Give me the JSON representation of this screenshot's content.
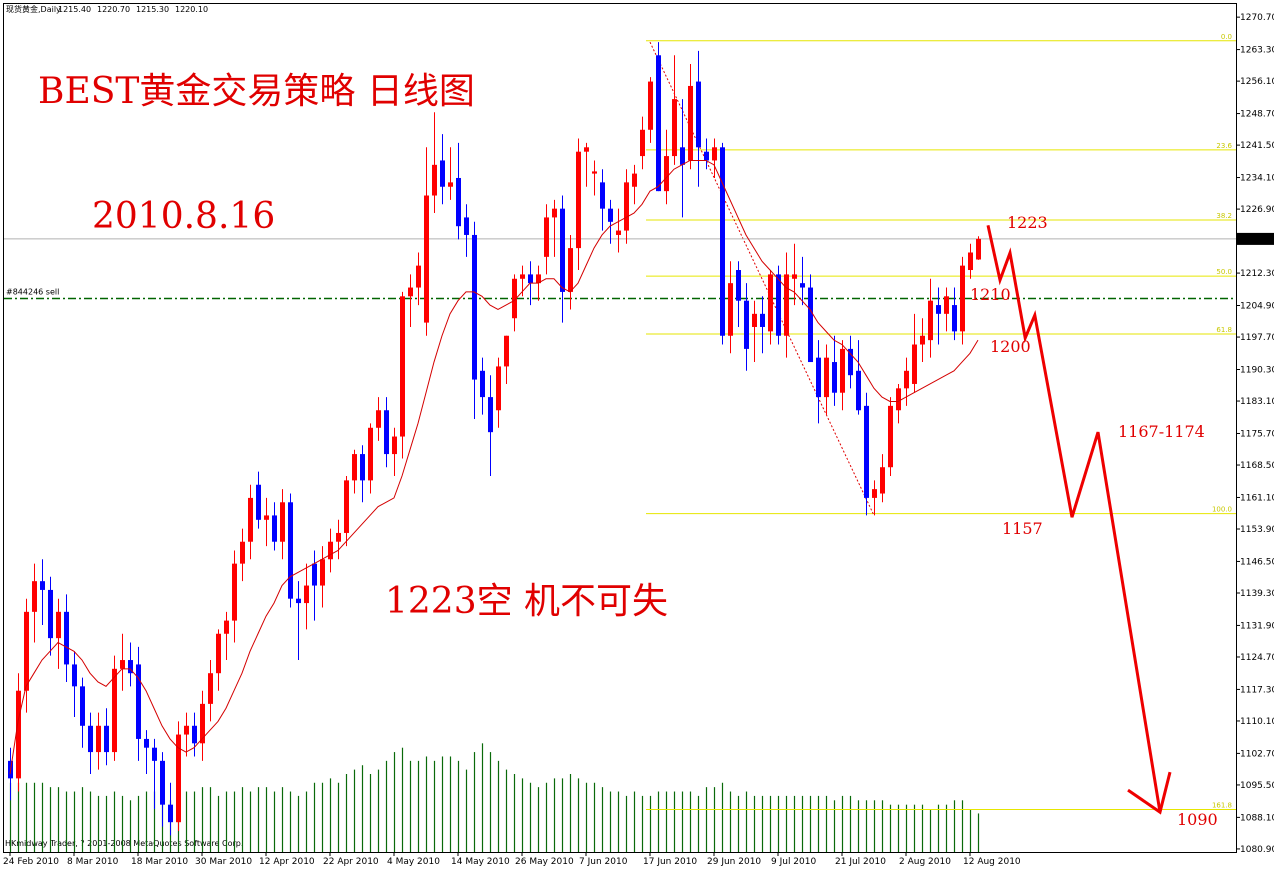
{
  "header": {
    "symbol": "现货黄金,Daily",
    "ohlc": [
      "1215.40",
      "1220.70",
      "1215.30",
      "1220.10"
    ]
  },
  "copyright": "HKmidway Trader, ? 2001-2008 MetaQuotes Software Corp.",
  "chart_data": {
    "type": "candlestick",
    "categories": [
      "24 Feb 2010",
      null,
      null,
      null,
      null,
      null,
      null,
      null,
      "8 Mar 2010",
      null,
      null,
      null,
      null,
      null,
      null,
      null,
      "18 Mar 2010",
      null,
      null,
      null,
      null,
      null,
      null,
      null,
      "30 Mar 2010",
      null,
      null,
      null,
      null,
      null,
      null,
      null,
      "12 Apr 2010",
      null,
      null,
      null,
      null,
      null,
      null,
      null,
      "22 Apr 2010",
      null,
      null,
      null,
      null,
      null,
      null,
      null,
      "4 May 2010",
      null,
      null,
      null,
      null,
      null,
      null,
      null,
      "14 May 2010",
      null,
      null,
      null,
      null,
      null,
      null,
      null,
      "26 May 2010",
      null,
      null,
      null,
      null,
      null,
      null,
      null,
      "7 Jun 2010",
      null,
      null,
      null,
      null,
      null,
      null,
      null,
      "17 Jun 2010",
      null,
      null,
      null,
      null,
      null,
      null,
      null,
      "29 Jun 2010",
      null,
      null,
      null,
      null,
      null,
      null,
      null,
      "9 Jul 2010",
      null,
      null,
      null,
      null,
      null,
      null,
      null,
      "21 Jul 2010",
      null,
      null,
      null,
      null,
      null,
      null,
      null,
      "2 Aug 2010",
      null,
      null,
      null,
      null,
      null,
      null,
      null,
      "12 Aug 2010",
      null
    ],
    "open": [
      1101,
      1097,
      1117,
      1135,
      1142,
      1140,
      1129,
      1135,
      1123,
      1118,
      1109,
      1103,
      1109,
      1103,
      1122,
      1124,
      1123,
      1106,
      1104,
      1101,
      1091,
      1087,
      1107,
      1109,
      1105,
      1114,
      1121,
      1130,
      1133,
      1146,
      1151,
      1164,
      1156,
      1157,
      1151,
      1160,
      1138,
      1137,
      1146,
      1141,
      1147,
      1151,
      1153,
      1165,
      1171,
      1165,
      1177,
      1181,
      1171,
      1175,
      1207,
      1209,
      1201,
      1230,
      1238,
      1232,
      1234,
      1225,
      1221,
      1190,
      1184,
      1181,
      1191,
      1202,
      1211,
      1212,
      1210,
      1216,
      1225,
      1227,
      1208,
      1218,
      1240,
      1235,
      1233,
      1227,
      1221,
      1222,
      1232,
      1239,
      1245,
      1262,
      1231,
      1239,
      1241,
      1238,
      1256,
      1240,
      1238,
      1241,
      1198,
      1213,
      1206,
      1200,
      1203,
      1199,
      1212,
      1198,
      1211,
      1210,
      1209,
      1193,
      1184,
      1192,
      1185,
      1195,
      1190,
      1182,
      1161,
      1162,
      1168,
      1181,
      1186,
      1187,
      1196,
      1197,
      1205,
      1203,
      1205,
      1199,
      1213,
      1215.4
    ],
    "high": [
      1104,
      1121,
      1138,
      1146,
      1147,
      1143,
      1138,
      1139,
      1126,
      1120,
      1112,
      1112,
      1113,
      1125,
      1130,
      1128,
      1127,
      1108,
      1106,
      1103,
      1096,
      1110,
      1112,
      1112,
      1117,
      1124,
      1131,
      1135,
      1149,
      1154,
      1164,
      1167,
      1161,
      1160,
      1163,
      1162,
      1142,
      1146,
      1149,
      1150,
      1154,
      1156,
      1166,
      1172,
      1173,
      1178,
      1184,
      1184,
      1177,
      1208,
      1212,
      1217,
      1241,
      1249,
      1244,
      1241,
      1242,
      1228,
      1224,
      1193,
      1189,
      1193,
      1198,
      1212,
      1214,
      1215,
      1214,
      1228,
      1229,
      1230,
      1221,
      1243,
      1242,
      1238,
      1236,
      1229,
      1227,
      1236,
      1237,
      1248,
      1257,
      1265,
      1245,
      1262,
      1252,
      1260,
      1263,
      1243,
      1243,
      1242,
      1215,
      1215,
      1210,
      1206,
      1207,
      1213,
      1214,
      1217,
      1219,
      1216,
      1212,
      1197,
      1196,
      1198,
      1197,
      1198,
      1197,
      1185,
      1165,
      1171,
      1184,
      1187,
      1193,
      1203,
      1202,
      1211,
      1209,
      1209,
      1209,
      1216,
      1219,
      1220.7
    ],
    "low": [
      1092,
      1094,
      1112,
      1128,
      1132,
      1125,
      1122,
      1119,
      1111,
      1104,
      1098,
      1099,
      1100,
      1101,
      1117,
      1118,
      1101,
      1098,
      1090,
      1086,
      1084,
      1085,
      1102,
      1102,
      1101,
      1110,
      1117,
      1124,
      1128,
      1142,
      1147,
      1154,
      1150,
      1149,
      1147,
      1136,
      1124,
      1131,
      1133,
      1136,
      1144,
      1147,
      1150,
      1162,
      1160,
      1162,
      1174,
      1168,
      1166,
      1170,
      1200,
      1205,
      1198,
      1226,
      1228,
      1229,
      1220,
      1216,
      1179,
      1180,
      1166,
      1177,
      1187,
      1199,
      1207,
      1205,
      1206,
      1212,
      1216,
      1201,
      1204,
      1213,
      1232,
      1230,
      1222,
      1219,
      1217,
      1219,
      1228,
      1236,
      1242,
      1231,
      1228,
      1237,
      1225,
      1236,
      1232,
      1236,
      1234,
      1196,
      1194,
      1200,
      1190,
      1192,
      1194,
      1196,
      1196,
      1193,
      1205,
      1205,
      1192,
      1178,
      1180,
      1182,
      1181,
      1186,
      1180,
      1157,
      1157,
      1160,
      1166,
      1178,
      1182,
      1185,
      1192,
      1193,
      1196,
      1199,
      1197,
      1196,
      1211,
      1215.3
    ],
    "close": [
      1097,
      1117,
      1135,
      1142,
      1140,
      1129,
      1135,
      1123,
      1118,
      1109,
      1103,
      1109,
      1103,
      1122,
      1124,
      1121,
      1106,
      1104,
      1101,
      1091,
      1087,
      1107,
      1109,
      1105,
      1114,
      1121,
      1130,
      1133,
      1146,
      1151,
      1161,
      1156,
      1157,
      1151,
      1160,
      1138,
      1137,
      1141,
      1141,
      1147,
      1151,
      1153,
      1165,
      1171,
      1165,
      1177,
      1181,
      1171,
      1175,
      1207,
      1209,
      1214,
      1230,
      1237,
      1232,
      1233,
      1223,
      1221,
      1188,
      1184,
      1176,
      1191,
      1198,
      1211,
      1212,
      1210,
      1212,
      1225,
      1227,
      1208,
      1218,
      1240,
      1241,
      1235.5,
      1227,
      1224,
      1222,
      1233,
      1235,
      1245,
      1256,
      1231,
      1239,
      1252,
      1237,
      1255,
      1241,
      1238,
      1241,
      1198,
      1210,
      1206,
      1195,
      1203,
      1200,
      1212,
      1198,
      1212,
      1212,
      1209,
      1192,
      1184,
      1193,
      1185,
      1195,
      1189,
      1181,
      1161,
      1163,
      1168,
      1182,
      1186,
      1190,
      1196,
      1198,
      1206,
      1203,
      1207,
      1199,
      1214,
      1217,
      1220.1
    ],
    "colors": {
      "up": "#ff0000",
      "down": "#0000ff"
    },
    "moving_average": {
      "color": "#d40000",
      "values": [
        1098,
        1110,
        1118,
        1121,
        1124,
        1126,
        1128,
        1127,
        1126,
        1124,
        1121,
        1119,
        1118,
        1120,
        1122,
        1122,
        1120,
        1117,
        1113,
        1109,
        1106,
        1104,
        1103,
        1104,
        1106,
        1108,
        1110,
        1113,
        1117,
        1121,
        1126,
        1130,
        1134,
        1137,
        1141,
        1143,
        1144,
        1145,
        1146,
        1147,
        1148,
        1149,
        1151,
        1153,
        1155,
        1157,
        1159,
        1160,
        1161,
        1166,
        1172,
        1178,
        1185,
        1192,
        1198,
        1203,
        1206,
        1208,
        1208,
        1207,
        1205,
        1204,
        1205,
        1206,
        1208,
        1210,
        1210,
        1211,
        1211,
        1209,
        1208,
        1210,
        1214,
        1218,
        1221,
        1223,
        1224,
        1225,
        1226,
        1228,
        1231,
        1232,
        1234,
        1236,
        1237,
        1238,
        1238,
        1238,
        1237,
        1233,
        1229,
        1225,
        1221,
        1218,
        1215,
        1213,
        1211,
        1209,
        1208,
        1206,
        1204,
        1201,
        1199,
        1197,
        1196,
        1194,
        1192,
        1189,
        1186,
        1184,
        1183,
        1183,
        1184,
        1185,
        1186,
        1187,
        1188,
        1189,
        1190,
        1192,
        1194,
        1197
      ]
    },
    "volume": {
      "color": "#0a6a0a",
      "values": [
        1096,
        1096,
        1096,
        1096,
        1096,
        1095,
        1095,
        1094,
        1094,
        1095,
        1094,
        1093,
        1093,
        1094,
        1093,
        1092,
        1093,
        1094,
        1094,
        1093,
        1092,
        1093,
        1094,
        1094,
        1095,
        1095,
        1093,
        1094,
        1094,
        1095,
        1094,
        1095,
        1095,
        1094,
        1095,
        1094,
        1093,
        1094,
        1096,
        1096,
        1097,
        1096,
        1098,
        1099,
        1100,
        1098,
        1099,
        1101,
        1103,
        1104,
        1101,
        1101,
        1102,
        1101,
        1102,
        1102,
        1101,
        1099,
        1103,
        1105,
        1103,
        1101,
        1099,
        1098,
        1097,
        1096,
        1095,
        1096,
        1097,
        1097,
        1098,
        1097,
        1096,
        1096,
        1095,
        1094,
        1094,
        1093,
        1094,
        1093,
        1093,
        1094,
        1094,
        1094,
        1094,
        1094,
        1093,
        1095,
        1095,
        1096,
        1094,
        1093,
        1094,
        1093,
        1093,
        1093,
        1093,
        1093,
        1093,
        1093,
        1093,
        1093,
        1093,
        1092,
        1093,
        1093,
        1092,
        1092,
        1092,
        1092,
        1091,
        1091,
        1091,
        1091,
        1091,
        1090,
        1091,
        1091,
        1092,
        1092,
        1090,
        1089
      ]
    },
    "ylim": [
      1080.2,
      1273.7
    ],
    "yticks": [
      {
        "value": 1270.7,
        "label": "1270.70"
      },
      {
        "value": 1263.3,
        "label": "1263.30"
      },
      {
        "value": 1256.1,
        "label": "1256.10"
      },
      {
        "value": 1248.7,
        "label": "1248.70"
      },
      {
        "value": 1241.5,
        "label": "1241.50"
      },
      {
        "value": 1234.1,
        "label": "1234.10"
      },
      {
        "value": 1226.9,
        "label": "1226.90"
      },
      {
        "value": 1212.3,
        "label": "1212.30"
      },
      {
        "value": 1204.9,
        "label": "1204.90"
      },
      {
        "value": 1197.7,
        "label": "1197.70"
      },
      {
        "value": 1190.3,
        "label": "1190.30"
      },
      {
        "value": 1183.1,
        "label": "1183.10"
      },
      {
        "value": 1175.7,
        "label": "1175.70"
      },
      {
        "value": 1168.5,
        "label": "1168.50"
      },
      {
        "value": 1161.1,
        "label": "1161.10"
      },
      {
        "value": 1153.9,
        "label": "1153.90"
      },
      {
        "value": 1146.5,
        "label": "1146.50"
      },
      {
        "value": 1139.3,
        "label": "1139.30"
      },
      {
        "value": 1131.9,
        "label": "1131.90"
      },
      {
        "value": 1124.7,
        "label": "1124.70"
      },
      {
        "value": 1117.3,
        "label": "1117.30"
      },
      {
        "value": 1110.1,
        "label": "1110.10"
      },
      {
        "value": 1102.7,
        "label": "1102.70"
      },
      {
        "value": 1095.5,
        "label": "1095.50"
      },
      {
        "value": 1088.1,
        "label": "1088.10"
      },
      {
        "value": 1080.9,
        "label": "1080.90"
      }
    ],
    "current_price": {
      "value": 1220.1,
      "label": "1220.10"
    },
    "order_line": {
      "value": 1206.5,
      "label": "#844246 sell",
      "color": "#006400"
    },
    "fibonacci": {
      "color": "#e6e600",
      "levels": [
        {
          "value": 1265.3,
          "label": "0.0"
        },
        {
          "value": 1240.4,
          "label": "23.6"
        },
        {
          "value": 1224.4,
          "label": "38.2"
        },
        {
          "value": 1211.6,
          "label": "50.0"
        },
        {
          "value": 1198.4,
          "label": "61.8"
        },
        {
          "value": 1157.4,
          "label": "100.0"
        },
        {
          "value": 1089.9,
          "label": "161.8"
        }
      ],
      "trend": {
        "x": [
          80,
          108
        ],
        "values": [
          1265,
          1157
        ]
      }
    },
    "forecast": {
      "color": "#ee0000",
      "x": [
        122.25,
        123.75,
        125,
        126.9,
        128.1,
        132.75,
        136,
        143.75
      ],
      "values": [
        1223.2,
        1210.7,
        1216.9,
        1197.5,
        1202.7,
        1156.6,
        1176.0,
        1089.3
      ]
    },
    "annotations": [
      "BEST黄金交易策略 日线图",
      "2010.8.16",
      "1223空  机不可失",
      "1223",
      "1210",
      "1200",
      "1167-1174",
      "1157",
      "1090"
    ]
  }
}
